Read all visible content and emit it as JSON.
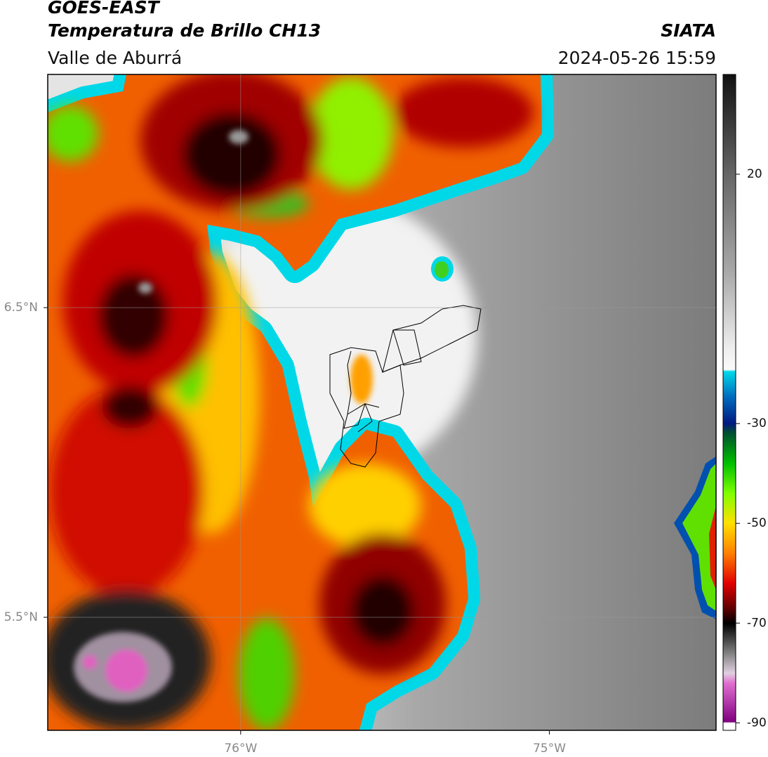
{
  "header": {
    "title": "GOES-EAST",
    "subtitle": "Temperatura de Brillo CH13",
    "region": "Valle de Aburrá",
    "source": "SIATA",
    "datetime": "2024-05-26 15:59"
  },
  "map": {
    "lon_range": [
      -76.625,
      -74.46
    ],
    "lat_range": [
      5.135,
      7.253
    ],
    "lon_ticks": [
      {
        "value": -76,
        "label": "76°W"
      },
      {
        "value": -75,
        "label": "75°W"
      }
    ],
    "lat_ticks": [
      {
        "value": 6.5,
        "label": "6.5°N"
      },
      {
        "value": 5.5,
        "label": "5.5°N"
      }
    ]
  },
  "colorbar": {
    "range": [
      -91.5,
      40
    ],
    "ticks": [
      20,
      -30,
      -50,
      -70,
      -90
    ]
  }
}
